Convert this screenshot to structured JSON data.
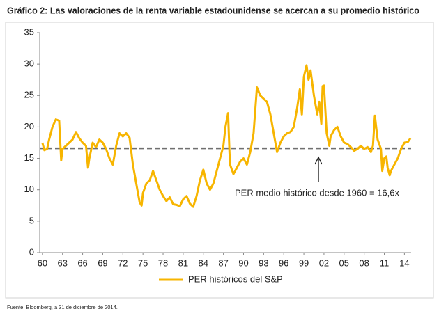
{
  "chart_data": {
    "type": "line",
    "title": "Gráfico 2: Las valoraciones de la renta variable estadounidense se acercan a su promedio histórico",
    "source": "Fuente: Bloomberg, a 31 de diciembre de 2014.",
    "x": [
      1960,
      1960.3,
      1960.7,
      1961,
      1961.5,
      1962,
      1962.5,
      1962.8,
      1963,
      1963.5,
      1964,
      1964.5,
      1965,
      1965.5,
      1966,
      1966.5,
      1966.8,
      1967,
      1967.5,
      1968,
      1968.5,
      1969,
      1969.5,
      1970,
      1970.5,
      1971,
      1971.5,
      1972,
      1972.5,
      1973,
      1973.5,
      1974,
      1974.5,
      1974.8,
      1975,
      1975.5,
      1976,
      1976.5,
      1977,
      1977.5,
      1978,
      1978.5,
      1979,
      1979.5,
      1980,
      1980.5,
      1981,
      1981.5,
      1982,
      1982.5,
      1983,
      1983.5,
      1984,
      1984.5,
      1985,
      1985.5,
      1986,
      1986.5,
      1987,
      1987.3,
      1987.7,
      1987.9,
      1988,
      1988.5,
      1989,
      1989.5,
      1990,
      1990.5,
      1991,
      1991.5,
      1992,
      1992.5,
      1993,
      1993.5,
      1994,
      1994.5,
      1995,
      1995.5,
      1996,
      1996.5,
      1997,
      1997.5,
      1998,
      1998.4,
      1998.7,
      1999,
      1999.4,
      1999.7,
      2000,
      2000.5,
      2001,
      2001.3,
      2001.6,
      2001.8,
      2002,
      2002.4,
      2002.8,
      2003,
      2003.5,
      2004,
      2004.5,
      2005,
      2005.5,
      2006,
      2006.5,
      2007,
      2007.5,
      2008,
      2008.5,
      2009,
      2009.3,
      2009.6,
      2010,
      2010.5,
      2010.7,
      2011,
      2011.3,
      2011.5,
      2011.8,
      2012,
      2012.5,
      2013,
      2013.5,
      2014,
      2014.5,
      2014.9
    ],
    "series": [
      {
        "name": "PER históricos del S&P",
        "color": "#f7b500",
        "values": [
          17.5,
          16.3,
          16.5,
          18,
          20,
          21.2,
          21,
          14.7,
          16.5,
          17,
          17.5,
          18,
          19.2,
          18.2,
          17.5,
          17,
          13.5,
          15,
          17.5,
          16.8,
          18,
          17.5,
          16.5,
          15,
          14,
          17,
          19,
          18.5,
          19,
          18.3,
          14,
          11,
          8,
          7.5,
          9.5,
          11,
          11.5,
          13,
          11.5,
          10,
          9,
          8.2,
          8.8,
          7.7,
          7.6,
          7.4,
          8.5,
          9,
          7.8,
          7.3,
          9,
          11.5,
          13.2,
          11,
          10,
          11,
          13,
          15,
          17,
          20,
          22.2,
          16,
          14,
          12.5,
          13.5,
          14.5,
          15,
          14,
          16,
          19,
          26.3,
          25,
          24.5,
          24,
          22,
          19,
          16,
          17.5,
          18.5,
          19,
          19.2,
          20,
          23,
          26,
          22,
          28,
          29.8,
          27.5,
          29,
          25,
          22,
          24,
          20.5,
          26.5,
          26.6,
          19,
          17,
          18.5,
          19.5,
          20,
          18.5,
          17.5,
          17.3,
          16.8,
          16.2,
          16.5,
          17,
          16.5,
          16.8,
          16,
          17,
          21.8,
          18,
          16.5,
          13,
          15,
          15.3,
          13.5,
          12.3,
          13,
          14,
          15,
          16.5,
          17.5,
          17.6,
          18.2
        ]
      }
    ],
    "reference_line": {
      "value": 16.6,
      "label": "PER medio histórico desde 1960 = 16,6x",
      "color": "#707070"
    },
    "xlim": [
      1959.6,
      2015
    ],
    "xticks": [
      {
        "value": 1960,
        "label": "60"
      },
      {
        "value": 1963,
        "label": "63"
      },
      {
        "value": 1966,
        "label": "66"
      },
      {
        "value": 1969,
        "label": "69"
      },
      {
        "value": 1972,
        "label": "72"
      },
      {
        "value": 1975,
        "label": "75"
      },
      {
        "value": 1978,
        "label": "78"
      },
      {
        "value": 1981,
        "label": "81"
      },
      {
        "value": 1984,
        "label": "84"
      },
      {
        "value": 1987,
        "label": "87"
      },
      {
        "value": 1990,
        "label": "90"
      },
      {
        "value": 1993,
        "label": "93"
      },
      {
        "value": 1996,
        "label": "96"
      },
      {
        "value": 1999,
        "label": "99"
      },
      {
        "value": 2002,
        "label": "02"
      },
      {
        "value": 2005,
        "label": "05"
      },
      {
        "value": 2008,
        "label": "08"
      },
      {
        "value": 2011,
        "label": "11"
      },
      {
        "value": 2014,
        "label": "14"
      }
    ],
    "ylim": [
      0,
      35
    ],
    "yticks": [
      0,
      5,
      10,
      15,
      20,
      25,
      30,
      35
    ]
  }
}
